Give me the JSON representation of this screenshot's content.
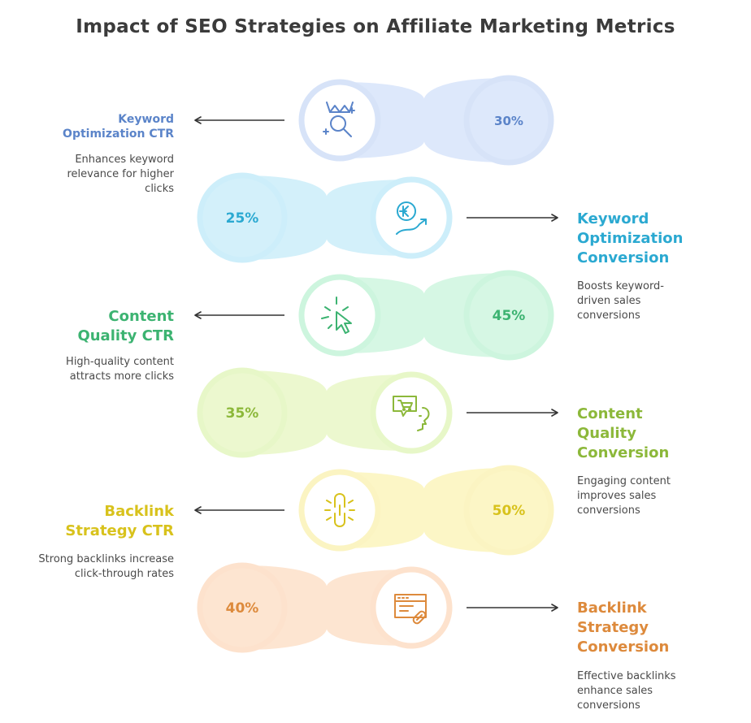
{
  "title": "Impact of SEO Strategies on Affiliate Marketing Metrics",
  "rows": [
    {
      "label": "Keyword Optimization CTR",
      "description": "Enhances keyword relevance for higher clicks",
      "value": "30%",
      "side": "left",
      "icon": "crown-search-icon",
      "accent": "#5b84c9",
      "ring": "#d7e3f8",
      "fill": "#dde8fb"
    },
    {
      "label": "Keyword Optimization Conversion",
      "description": "Boosts keyword-driven sales conversions",
      "value": "25%",
      "side": "right",
      "icon": "currency-growth-icon",
      "accent": "#2ba9d1",
      "ring": "#cdeefa",
      "fill": "#d3f0fa"
    },
    {
      "label": "Content Quality CTR",
      "description": "High-quality content attracts more clicks",
      "value": "45%",
      "side": "left",
      "icon": "cursor-click-icon",
      "accent": "#3cb371",
      "ring": "#cdf5de",
      "fill": "#d6f7e4"
    },
    {
      "label": "Content Quality Conversion",
      "description": "Engaging content improves sales conversions",
      "value": "35%",
      "side": "right",
      "icon": "cart-speech-icon",
      "accent": "#8cb83a",
      "ring": "#e7f7c8",
      "fill": "#ecf8cf"
    },
    {
      "label": "Backlink Strategy CTR",
      "description": "Strong backlinks increase click-through rates",
      "value": "50%",
      "side": "left",
      "icon": "chain-link-icon",
      "accent": "#d8c21c",
      "ring": "#fbf4c2",
      "fill": "#fcf6c6"
    },
    {
      "label": "Backlink Strategy Conversion",
      "description": "Effective backlinks enhance sales conversions",
      "value": "40%",
      "side": "right",
      "icon": "browser-link-icon",
      "accent": "#dd8a3c",
      "ring": "#fde2cd",
      "fill": "#fde5d1"
    }
  ]
}
